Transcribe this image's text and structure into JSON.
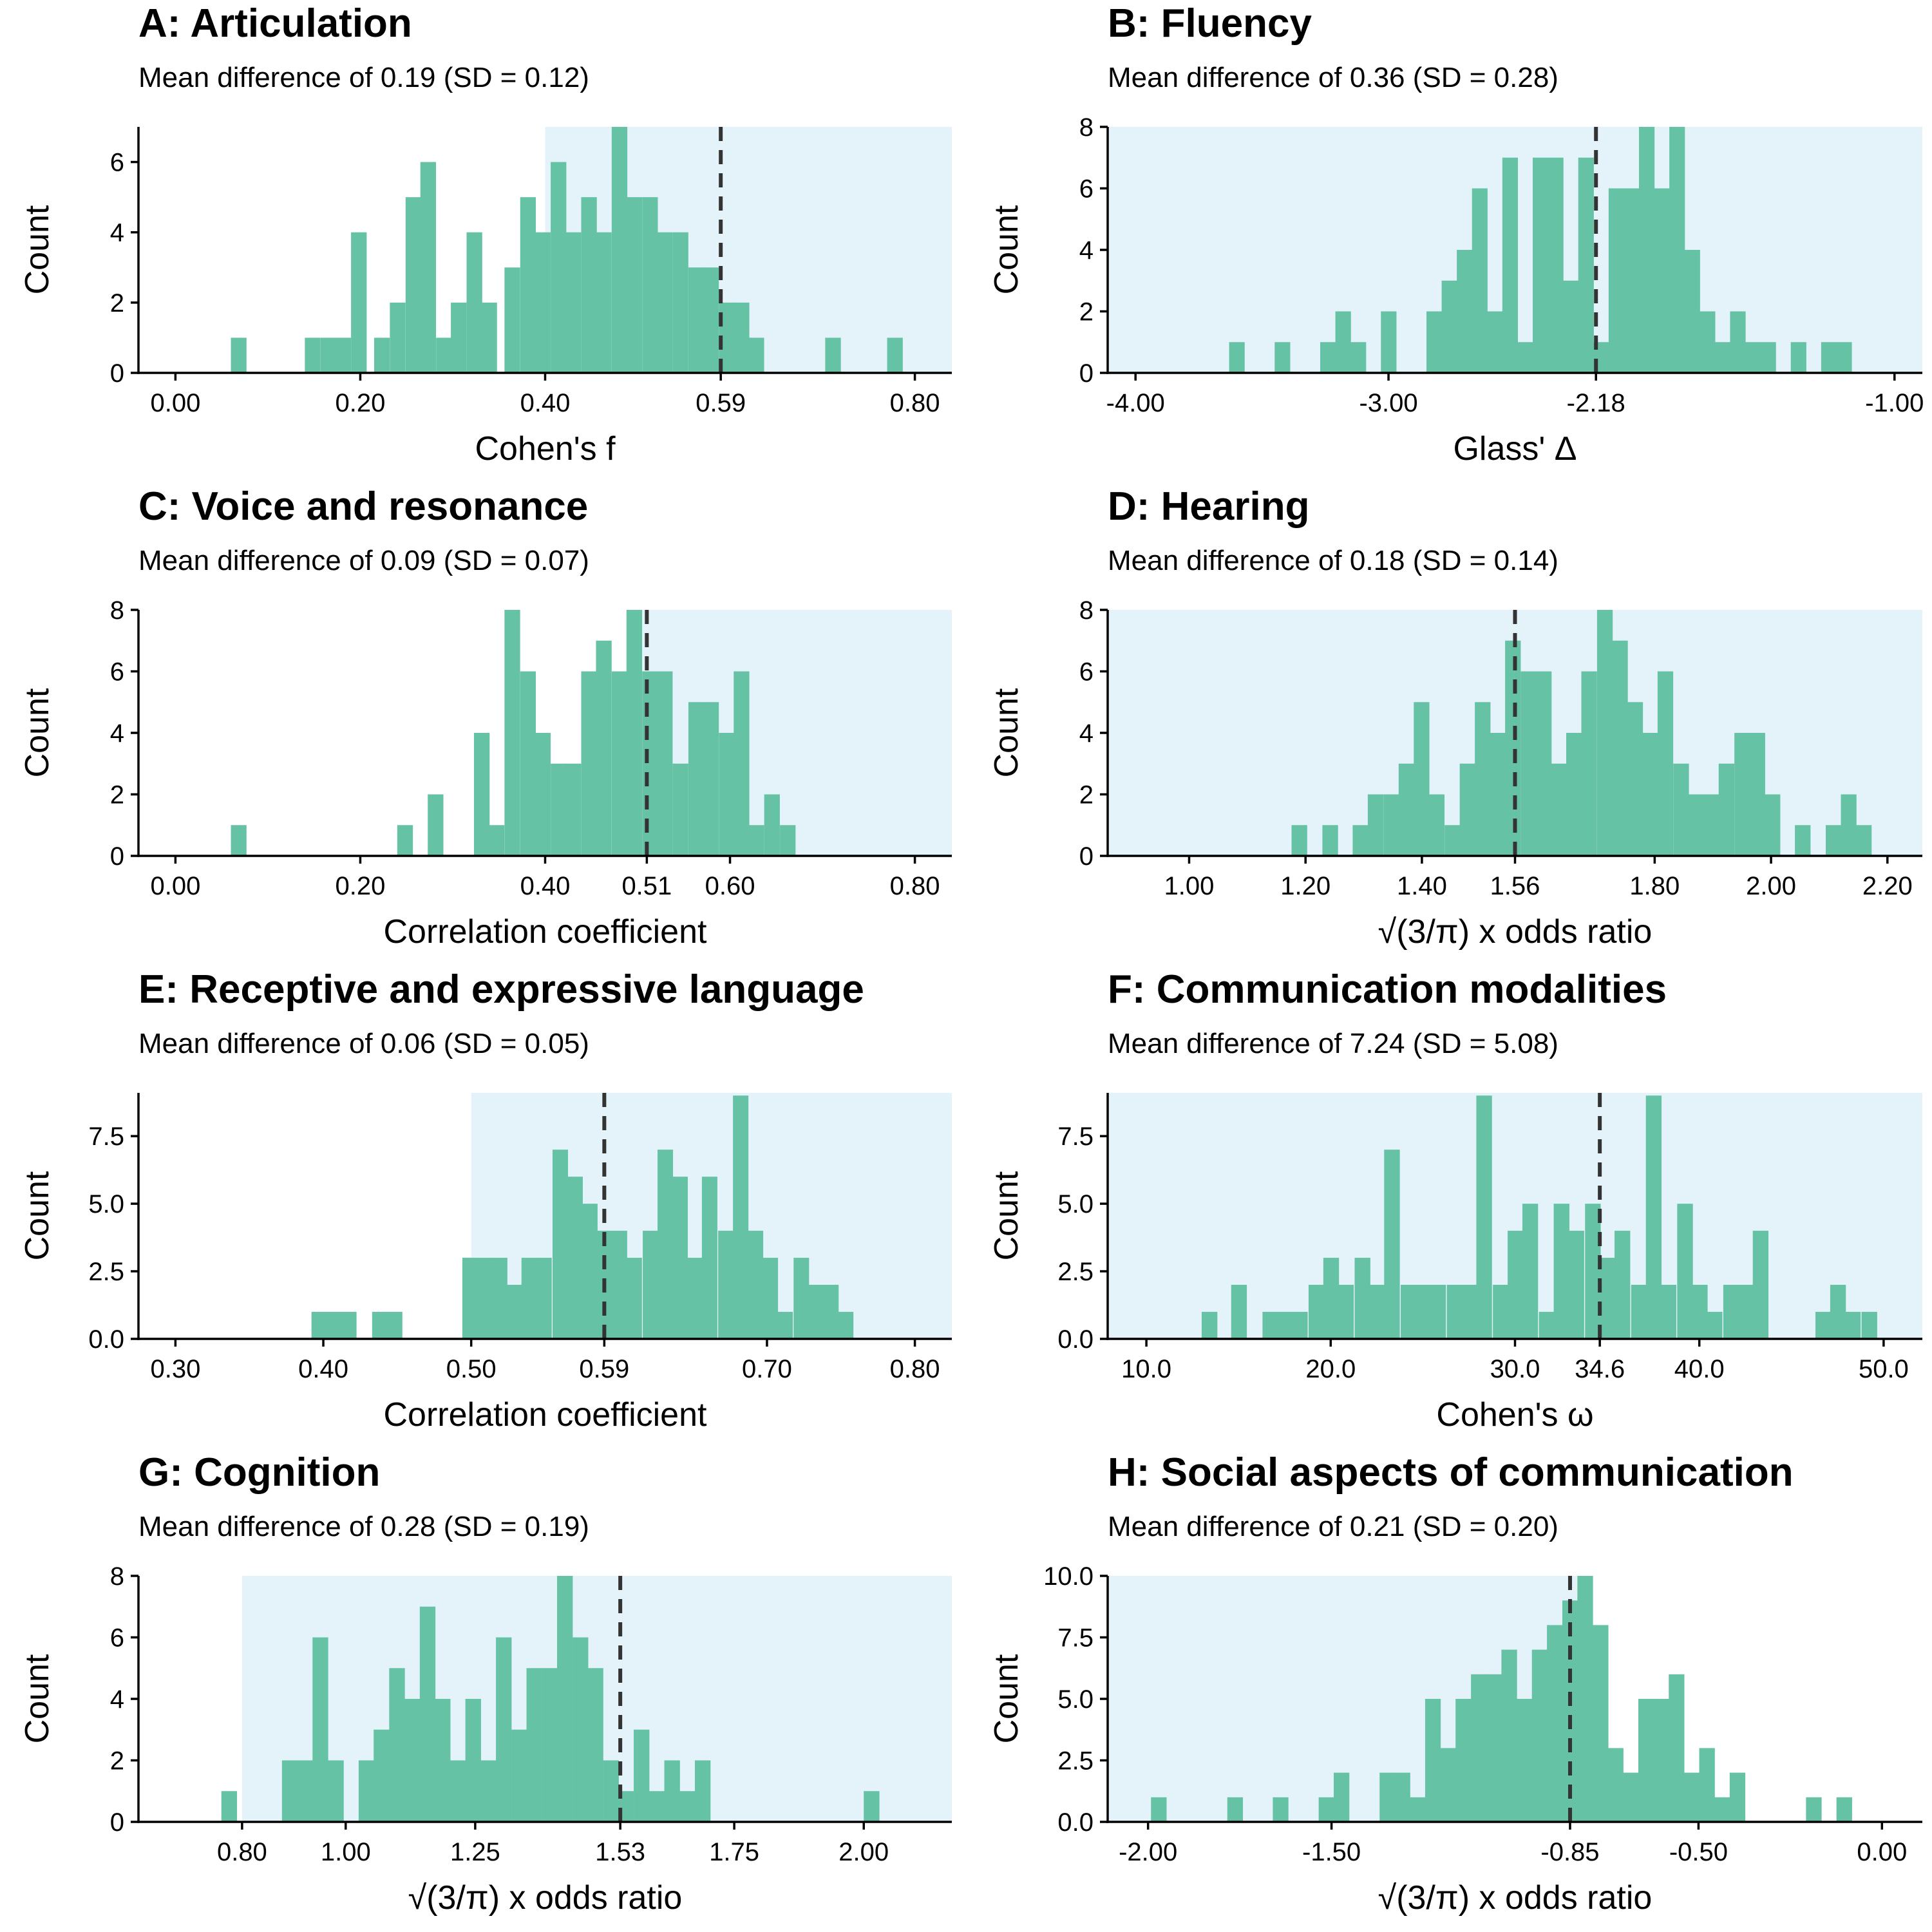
{
  "colors": {
    "bar": "#66c2a5",
    "shade": "#e4f3f9",
    "mean_line": "#333333",
    "axis": "#000000"
  },
  "chart_data": [
    {
      "type": "bar",
      "panel": "A",
      "title": "A: Articulation",
      "subtitle": "Mean difference of 0.19 (SD = 0.12)",
      "xlabel": "Cohen's f",
      "ylabel": "Count",
      "xlim": [
        -0.04,
        0.84
      ],
      "ylim": [
        0,
        7
      ],
      "xticks": [
        0.0,
        0.2,
        0.4,
        0.59,
        0.8
      ],
      "xtick_labels": [
        "0.00",
        "0.20",
        "0.40",
        "0.59",
        "0.80"
      ],
      "yticks": [
        0,
        2,
        4,
        6
      ],
      "ytick_labels": [
        "0",
        "2",
        "4",
        "6"
      ],
      "shaded_range": [
        0.4,
        0.84
      ],
      "mean_line": 0.59,
      "bin_width": 0.0165,
      "bins": [
        0.06,
        0.14,
        0.157,
        0.173,
        0.19,
        0.215,
        0.232,
        0.249,
        0.265,
        0.282,
        0.298,
        0.315,
        0.331,
        0.356,
        0.373,
        0.389,
        0.406,
        0.422,
        0.439,
        0.455,
        0.472,
        0.488,
        0.505,
        0.521,
        0.538,
        0.555,
        0.571,
        0.588,
        0.604,
        0.62,
        0.703,
        0.77
      ],
      "counts": [
        1,
        1,
        1,
        1,
        4,
        1,
        2,
        5,
        6,
        1,
        2,
        4,
        2,
        3,
        5,
        4,
        6,
        4,
        5,
        4,
        7,
        5,
        5,
        4,
        4,
        3,
        3,
        2,
        2,
        1,
        1,
        1
      ]
    },
    {
      "type": "bar",
      "panel": "B",
      "title": "B: Fluency",
      "subtitle": "Mean difference of 0.36 (SD = 0.28)",
      "xlabel": "Glass' Δ",
      "ylabel": "Count",
      "xlim": [
        -4.11,
        -0.89
      ],
      "ylim": [
        0,
        8
      ],
      "xticks": [
        -4.0,
        -3.0,
        -2.18,
        -1.0
      ],
      "xtick_labels": [
        "-4.00",
        "-3.00",
        "-2.18",
        "-1.00"
      ],
      "yticks": [
        0,
        2,
        4,
        6,
        8
      ],
      "ytick_labels": [
        "0",
        "2",
        "4",
        "6",
        "8"
      ],
      "shaded_range": [
        -4.11,
        -0.89
      ],
      "mean_line": -2.18,
      "bin_width": 0.06,
      "bins": [
        -3.63,
        -3.45,
        -3.27,
        -3.21,
        -3.15,
        -3.03,
        -2.85,
        -2.79,
        -2.73,
        -2.67,
        -2.61,
        -2.55,
        -2.49,
        -2.43,
        -2.37,
        -2.31,
        -2.25,
        -2.19,
        -2.13,
        -2.07,
        -2.01,
        -1.95,
        -1.89,
        -1.83,
        -1.77,
        -1.71,
        -1.65,
        -1.59,
        -1.53,
        -1.41,
        -1.29,
        -1.23
      ],
      "counts": [
        1,
        1,
        1,
        2,
        1,
        2,
        2,
        3,
        4,
        6,
        2,
        7,
        1,
        7,
        7,
        3,
        7,
        1,
        6,
        6,
        8,
        6,
        8,
        4,
        2,
        1,
        2,
        1,
        1,
        1,
        1,
        1
      ]
    },
    {
      "type": "bar",
      "panel": "C",
      "title": "C: Voice and resonance",
      "subtitle": "Mean difference of 0.09 (SD = 0.07)",
      "xlabel": "Correlation coefficient",
      "ylabel": "Count",
      "xlim": [
        -0.04,
        0.84
      ],
      "ylim": [
        0,
        8
      ],
      "xticks": [
        0.0,
        0.2,
        0.4,
        0.51,
        0.6,
        0.8
      ],
      "xtick_labels": [
        "0.00",
        "0.20",
        "0.40",
        "0.51",
        "0.60",
        "0.80"
      ],
      "yticks": [
        0,
        2,
        4,
        6,
        8
      ],
      "ytick_labels": [
        "0",
        "2",
        "4",
        "6",
        "8"
      ],
      "shaded_range": [
        0.495,
        0.84
      ],
      "mean_line": 0.51,
      "bin_width": 0.0165,
      "bins": [
        0.06,
        0.24,
        0.273,
        0.323,
        0.339,
        0.356,
        0.373,
        0.389,
        0.406,
        0.422,
        0.439,
        0.455,
        0.472,
        0.488,
        0.505,
        0.521,
        0.538,
        0.555,
        0.571,
        0.588,
        0.604,
        0.62,
        0.637,
        0.654
      ],
      "counts": [
        1,
        1,
        2,
        4,
        1,
        8,
        6,
        4,
        3,
        3,
        6,
        7,
        6,
        8,
        6,
        6,
        3,
        5,
        5,
        4,
        6,
        1,
        2,
        1
      ]
    },
    {
      "type": "bar",
      "panel": "D",
      "title": "D: Hearing",
      "subtitle": "Mean difference of 0.18 (SD = 0.14)",
      "xlabel": "√(3/π) x odds ratio",
      "ylabel": "Count",
      "xlim": [
        0.86,
        2.26
      ],
      "ylim": [
        0,
        8
      ],
      "xticks": [
        1.0,
        1.2,
        1.4,
        1.56,
        1.8,
        2.0,
        2.2
      ],
      "xtick_labels": [
        "1.00",
        "1.20",
        "1.40",
        "1.56",
        "1.80",
        "2.00",
        "2.20"
      ],
      "yticks": [
        0,
        2,
        4,
        6,
        8
      ],
      "ytick_labels": [
        "0",
        "2",
        "4",
        "6",
        "8"
      ],
      "shaded_range": [
        0.86,
        2.26
      ],
      "mean_line": 1.56,
      "bin_width": 0.0262,
      "bins": [
        1.176,
        1.229,
        1.281,
        1.307,
        1.334,
        1.36,
        1.386,
        1.412,
        1.439,
        1.465,
        1.491,
        1.517,
        1.543,
        1.57,
        1.596,
        1.622,
        1.648,
        1.674,
        1.701,
        1.727,
        1.753,
        1.779,
        1.805,
        1.832,
        1.858,
        1.884,
        1.91,
        1.937,
        1.963,
        1.989,
        2.041,
        2.094,
        2.12,
        2.146
      ],
      "counts": [
        1,
        1,
        1,
        2,
        2,
        3,
        5,
        2,
        1,
        3,
        5,
        4,
        7,
        6,
        6,
        3,
        4,
        6,
        8,
        7,
        5,
        4,
        6,
        3,
        2,
        2,
        3,
        4,
        4,
        2,
        1,
        1,
        2,
        1
      ]
    },
    {
      "type": "bar",
      "panel": "E",
      "title": "E: Receptive and expressive language",
      "subtitle": "Mean difference of 0.06 (SD = 0.05)",
      "xlabel": "Correlation coefficient",
      "ylabel": "Count",
      "xlim": [
        0.275,
        0.825
      ],
      "ylim": [
        0,
        9.1
      ],
      "xticks": [
        0.3,
        0.4,
        0.5,
        0.59,
        0.7,
        0.8
      ],
      "xtick_labels": [
        "0.30",
        "0.40",
        "0.50",
        "0.59",
        "0.70",
        "0.80"
      ],
      "yticks": [
        0.0,
        2.5,
        5.0,
        7.5
      ],
      "ytick_labels": [
        "0.0",
        "2.5",
        "5.0",
        "7.5"
      ],
      "shaded_range": [
        0.5,
        0.825
      ],
      "mean_line": 0.59,
      "bin_width": 0.0102,
      "bins": [
        0.392,
        0.402,
        0.412,
        0.433,
        0.443,
        0.494,
        0.504,
        0.514,
        0.524,
        0.534,
        0.544,
        0.555,
        0.565,
        0.575,
        0.585,
        0.595,
        0.605,
        0.616,
        0.626,
        0.636,
        0.646,
        0.656,
        0.667,
        0.677,
        0.687,
        0.697,
        0.707,
        0.718,
        0.728,
        0.738,
        0.748
      ],
      "counts": [
        1,
        1,
        1,
        1,
        1,
        3,
        3,
        3,
        2,
        3,
        3,
        7,
        6,
        5,
        4,
        4,
        3,
        4,
        7,
        6,
        3,
        6,
        4,
        9,
        4,
        3,
        1,
        3,
        2,
        2,
        1
      ]
    },
    {
      "type": "bar",
      "panel": "F",
      "title": "F: Communication modalities",
      "subtitle": "Mean difference of 7.24 (SD = 5.08)",
      "xlabel": "Cohen's ω",
      "ylabel": "Count",
      "xlim": [
        7.9,
        52.1
      ],
      "ylim": [
        0,
        9.1
      ],
      "xticks": [
        10.0,
        20.0,
        30.0,
        34.6,
        40.0,
        50.0
      ],
      "xtick_labels": [
        "10.0",
        "20.0",
        "30.0",
        "34.6",
        "40.0",
        "50.0"
      ],
      "yticks": [
        0.0,
        2.5,
        5.0,
        7.5
      ],
      "ytick_labels": [
        "0.0",
        "2.5",
        "5.0",
        "7.5"
      ],
      "shaded_range": [
        7.9,
        52.1
      ],
      "mean_line": 34.6,
      "bin_width": 0.83,
      "bins": [
        13.0,
        14.6,
        16.3,
        17.1,
        17.9,
        18.8,
        19.6,
        20.4,
        21.3,
        22.1,
        22.9,
        23.8,
        24.6,
        25.4,
        26.3,
        27.1,
        27.9,
        28.8,
        29.6,
        30.4,
        31.3,
        32.1,
        32.9,
        33.8,
        34.6,
        35.4,
        36.3,
        37.1,
        37.9,
        38.8,
        39.6,
        40.4,
        41.3,
        42.1,
        42.9,
        46.3,
        47.1,
        47.9,
        48.8
      ],
      "counts": [
        1,
        2,
        1,
        1,
        1,
        2,
        3,
        2,
        3,
        2,
        7,
        2,
        2,
        2,
        2,
        2,
        9,
        2,
        4,
        5,
        1,
        5,
        4,
        5,
        3,
        4,
        2,
        9,
        2,
        5,
        2,
        1,
        2,
        2,
        4,
        1,
        2,
        1,
        1
      ]
    },
    {
      "type": "bar",
      "panel": "G",
      "title": "G: Cognition",
      "subtitle": "Mean difference of 0.28 (SD = 0.19)",
      "xlabel": "√(3/π) x odds ratio",
      "ylabel": "Count",
      "xlim": [
        0.6,
        2.17
      ],
      "ylim": [
        0,
        8
      ],
      "xticks": [
        0.8,
        1.0,
        1.25,
        1.53,
        1.75,
        2.0
      ],
      "xtick_labels": [
        "0.80",
        "1.00",
        "1.25",
        "1.53",
        "1.75",
        "2.00"
      ],
      "yticks": [
        0,
        2,
        4,
        6,
        8
      ],
      "ytick_labels": [
        "0",
        "2",
        "4",
        "6",
        "8"
      ],
      "shaded_range": [
        0.8,
        2.17
      ],
      "mean_line": 1.53,
      "bin_width": 0.0295,
      "bins": [
        0.76,
        0.877,
        0.907,
        0.936,
        0.966,
        1.025,
        1.054,
        1.084,
        1.113,
        1.143,
        1.172,
        1.202,
        1.231,
        1.261,
        1.29,
        1.32,
        1.349,
        1.379,
        1.408,
        1.438,
        1.467,
        1.497,
        1.526,
        1.556,
        1.585,
        1.615,
        1.644,
        1.674,
        2.0
      ],
      "counts": [
        1,
        2,
        2,
        6,
        2,
        2,
        3,
        5,
        4,
        7,
        4,
        2,
        4,
        2,
        6,
        3,
        5,
        5,
        8,
        6,
        5,
        2,
        1,
        3,
        1,
        2,
        1,
        2,
        1
      ]
    },
    {
      "type": "bar",
      "panel": "H",
      "title": "H: Social aspects of communication",
      "subtitle": "Mean difference of 0.21 (SD = 0.20)",
      "xlabel": "√(3/π) x odds ratio",
      "ylabel": "Count",
      "xlim": [
        -2.11,
        0.11
      ],
      "ylim": [
        0,
        10
      ],
      "xticks": [
        -2.0,
        -1.5,
        -0.85,
        -0.5,
        0.0
      ],
      "xtick_labels": [
        "-2.00",
        "-1.50",
        "-0.85",
        "-0.50",
        "0.00"
      ],
      "yticks": [
        0.0,
        2.5,
        5.0,
        7.5,
        10.0
      ],
      "ytick_labels": [
        "0.0",
        "2.5",
        "5.0",
        "7.5",
        "10.0"
      ],
      "shaded_range": [
        -2.11,
        -0.79
      ],
      "mean_line": -0.85,
      "bin_width": 0.0415,
      "bins": [
        -1.992,
        -1.784,
        -1.66,
        -1.535,
        -1.494,
        -1.369,
        -1.328,
        -1.286,
        -1.245,
        -1.203,
        -1.162,
        -1.12,
        -1.079,
        -1.037,
        -0.996,
        -0.954,
        -0.913,
        -0.871,
        -0.83,
        -0.788,
        -0.747,
        -0.705,
        -0.664,
        -0.622,
        -0.581,
        -0.539,
        -0.498,
        -0.456,
        -0.415,
        -0.207,
        -0.124
      ],
      "counts": [
        1,
        1,
        1,
        1,
        2,
        2,
        2,
        1,
        5,
        3,
        5,
        6,
        6,
        7,
        5,
        7,
        8,
        9,
        10,
        8,
        3,
        2,
        5,
        5,
        6,
        2,
        3,
        1,
        2,
        1,
        1
      ]
    }
  ]
}
